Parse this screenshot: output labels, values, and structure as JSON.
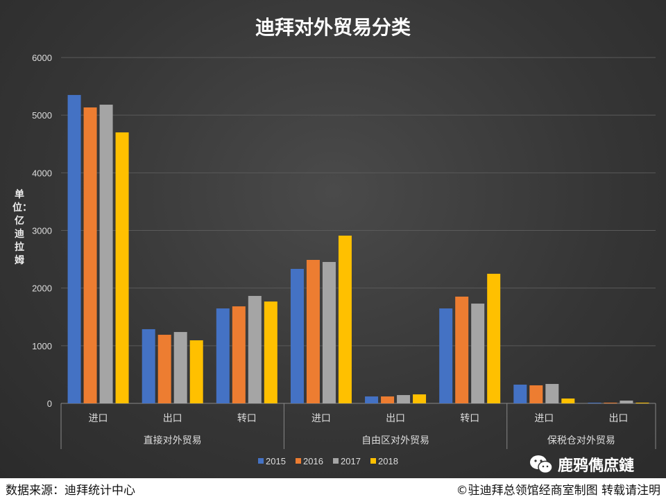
{
  "chart_data": {
    "type": "bar",
    "title": "迪拜对外贸易分类",
    "ylabel": "单位：亿迪拉姆",
    "xlabel": "",
    "ylim": [
      0,
      6000
    ],
    "yticks": [
      0,
      1000,
      2000,
      3000,
      4000,
      5000,
      6000
    ],
    "grid": true,
    "legend_position": "bottom",
    "groups": [
      {
        "label": "直接对外贸易",
        "categories": [
          "进口",
          "出口",
          "转口"
        ]
      },
      {
        "label": "自由区对外贸易",
        "categories": [
          "进口",
          "出口",
          "转口"
        ]
      },
      {
        "label": "保税仓对外贸易",
        "categories": [
          "进口",
          "出口"
        ]
      }
    ],
    "categories": [
      "进口",
      "出口",
      "转口",
      "进口",
      "出口",
      "转口",
      "进口",
      "出口"
    ],
    "series": [
      {
        "name": "2015",
        "color": "#4472c4",
        "values": [
          5350,
          1287,
          1647,
          2333,
          120,
          1647,
          325,
          12
        ]
      },
      {
        "name": "2016",
        "color": "#ed7d31",
        "values": [
          5134,
          1190,
          1683,
          2489,
          120,
          1852,
          313,
          12
        ]
      },
      {
        "name": "2017",
        "color": "#a5a5a5",
        "values": [
          5182,
          1238,
          1864,
          2453,
          144,
          1731,
          337,
          48
        ]
      },
      {
        "name": "2018",
        "color": "#ffc000",
        "values": [
          4701,
          1094,
          1767,
          2910,
          156,
          2248,
          84,
          12
        ]
      }
    ]
  },
  "footer": {
    "source": "数据来源：迪拜统计中心",
    "copyright": "©驻迪拜总领馆经商室制图 转载请注明"
  },
  "watermark": "鹿鸦儁庶鏈"
}
